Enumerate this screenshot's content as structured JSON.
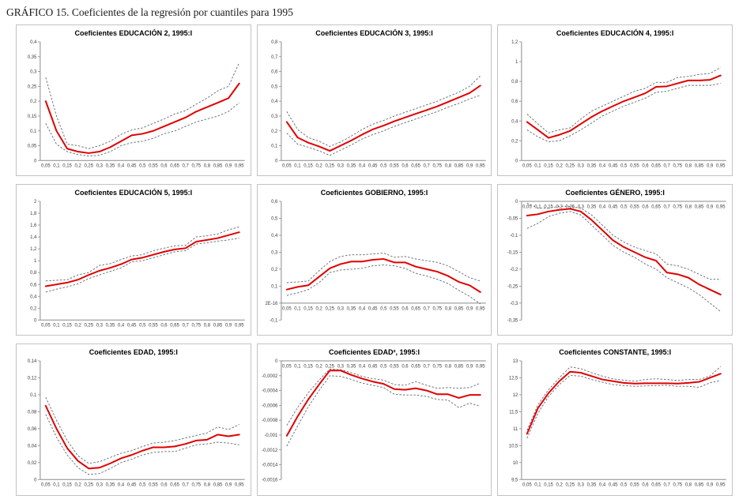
{
  "page_title": "GRÁFICO 15. Coeficientes de la regresión por cuantiles para 1995",
  "colors": {
    "estimate_line": "#e00000",
    "confidence_band": "#5b6770",
    "axis": "#8a8a8a",
    "panel_border": "#c3c3c3",
    "tick_text": "#404040",
    "title_text": "#000000"
  },
  "x_values": [
    0.05,
    0.1,
    0.15,
    0.2,
    0.25,
    0.3,
    0.35,
    0.4,
    0.45,
    0.5,
    0.55,
    0.6,
    0.65,
    0.7,
    0.75,
    0.8,
    0.85,
    0.9,
    0.95
  ],
  "x_tick_labels": [
    "0,05",
    "0,1",
    "0,15",
    "0,2",
    "0,25",
    "0,3",
    "0,35",
    "0,4",
    "0,45",
    "0,5",
    "0,55",
    "0,6",
    "0,65",
    "0,7",
    "0,75",
    "0,8",
    "0,85",
    "0,9",
    "0,95"
  ],
  "chart_data": [
    {
      "type": "line",
      "title": "Coeficientes EDUCACIÓN 2, 1995:I",
      "ylim": [
        0,
        0.4
      ],
      "x_axis_at": 0,
      "y_tick_values": [
        0.4,
        0.35,
        0.3,
        0.25,
        0.2,
        0.15,
        0.1,
        0.05,
        0
      ],
      "y_tick_labels": [
        "0,4",
        "0,35",
        "0,3",
        "0,25",
        "0,2",
        "0,15",
        "0,1",
        "0,05",
        "0"
      ],
      "series": [
        {
          "name": "coeficiente",
          "role": "estimate",
          "values": [
            0.2,
            0.1,
            0.04,
            0.03,
            0.025,
            0.03,
            0.045,
            0.065,
            0.085,
            0.09,
            0.1,
            0.115,
            0.13,
            0.145,
            0.165,
            0.18,
            0.195,
            0.21,
            0.26
          ]
        },
        {
          "name": "banda superior",
          "role": "band",
          "values": [
            0.28,
            0.15,
            0.055,
            0.05,
            0.04,
            0.05,
            0.065,
            0.088,
            0.103,
            0.11,
            0.125,
            0.14,
            0.157,
            0.168,
            0.19,
            0.21,
            0.235,
            0.25,
            0.33
          ]
        },
        {
          "name": "banda inferior",
          "role": "band",
          "values": [
            0.125,
            0.055,
            0.03,
            0.02,
            0.015,
            0.018,
            0.03,
            0.05,
            0.06,
            0.065,
            0.075,
            0.09,
            0.1,
            0.115,
            0.13,
            0.14,
            0.15,
            0.165,
            0.195
          ]
        }
      ]
    },
    {
      "type": "line",
      "title": "Coeficientes EDUCACIÓN 3, 1995:I",
      "ylim": [
        0,
        0.8
      ],
      "x_axis_at": 0,
      "y_tick_values": [
        0.8,
        0.7,
        0.6,
        0.5,
        0.4,
        0.3,
        0.2,
        0.1,
        0
      ],
      "y_tick_labels": [
        "0,8",
        "0,7",
        "0,6",
        "0,5",
        "0,4",
        "0,3",
        "0,2",
        "0,1",
        "0"
      ],
      "series": [
        {
          "name": "coeficiente",
          "role": "estimate",
          "values": [
            0.26,
            0.155,
            0.12,
            0.095,
            0.065,
            0.1,
            0.135,
            0.175,
            0.21,
            0.235,
            0.265,
            0.29,
            0.315,
            0.34,
            0.365,
            0.395,
            0.425,
            0.455,
            0.505
          ]
        },
        {
          "name": "banda superior",
          "role": "band",
          "values": [
            0.33,
            0.21,
            0.155,
            0.13,
            0.095,
            0.125,
            0.165,
            0.21,
            0.245,
            0.27,
            0.3,
            0.325,
            0.35,
            0.375,
            0.4,
            0.43,
            0.46,
            0.5,
            0.57
          ]
        },
        {
          "name": "banda inferior",
          "role": "band",
          "values": [
            0.185,
            0.11,
            0.09,
            0.065,
            0.035,
            0.07,
            0.105,
            0.145,
            0.175,
            0.2,
            0.23,
            0.255,
            0.28,
            0.305,
            0.33,
            0.36,
            0.385,
            0.415,
            0.44
          ]
        }
      ]
    },
    {
      "type": "line",
      "title": "Coeficientes EDUCACIÓN 4, 1995:I",
      "ylim": [
        0,
        1.2
      ],
      "x_axis_at": 0,
      "y_tick_values": [
        1.2,
        1,
        0.8,
        0.6,
        0.4,
        0.2,
        0
      ],
      "y_tick_labels": [
        "1,2",
        "1",
        "0,8",
        "0,6",
        "0,4",
        "0,2",
        "0"
      ],
      "series": [
        {
          "name": "coeficiente",
          "role": "estimate",
          "values": [
            0.39,
            0.31,
            0.23,
            0.26,
            0.3,
            0.37,
            0.44,
            0.5,
            0.55,
            0.6,
            0.64,
            0.68,
            0.745,
            0.75,
            0.78,
            0.81,
            0.81,
            0.815,
            0.86
          ]
        },
        {
          "name": "banda superior",
          "role": "band",
          "values": [
            0.47,
            0.37,
            0.28,
            0.31,
            0.33,
            0.42,
            0.5,
            0.55,
            0.6,
            0.65,
            0.7,
            0.73,
            0.79,
            0.79,
            0.84,
            0.85,
            0.87,
            0.88,
            0.94
          ]
        },
        {
          "name": "banda inferior",
          "role": "band",
          "values": [
            0.31,
            0.24,
            0.19,
            0.2,
            0.25,
            0.31,
            0.38,
            0.45,
            0.5,
            0.55,
            0.59,
            0.63,
            0.69,
            0.7,
            0.73,
            0.76,
            0.76,
            0.76,
            0.78
          ]
        }
      ]
    },
    {
      "type": "line",
      "title": "Coeficientes EDUCACIÓN 5, 1995:I",
      "ylim": [
        0,
        2
      ],
      "x_axis_at": 0,
      "y_tick_values": [
        2,
        1.8,
        1.6,
        1.4,
        1.2,
        1,
        0.8,
        0.6,
        0.4,
        0.2,
        0
      ],
      "y_tick_labels": [
        "2",
        "1,8",
        "1,6",
        "1,4",
        "1,2",
        "1",
        "0,8",
        "0,6",
        "0,4",
        "0,2",
        "0"
      ],
      "series": [
        {
          "name": "coeficiente",
          "role": "estimate",
          "values": [
            0.57,
            0.6,
            0.63,
            0.68,
            0.76,
            0.83,
            0.88,
            0.94,
            1.02,
            1.05,
            1.1,
            1.15,
            1.19,
            1.21,
            1.32,
            1.35,
            1.38,
            1.43,
            1.48
          ]
        },
        {
          "name": "banda superior",
          "role": "band",
          "values": [
            0.66,
            0.67,
            0.68,
            0.76,
            0.8,
            0.92,
            0.95,
            1.02,
            1.08,
            1.1,
            1.17,
            1.21,
            1.25,
            1.26,
            1.4,
            1.42,
            1.45,
            1.52,
            1.57
          ]
        },
        {
          "name": "banda inferior",
          "role": "band",
          "values": [
            0.47,
            0.52,
            0.56,
            0.61,
            0.7,
            0.76,
            0.82,
            0.88,
            0.98,
            1.0,
            1.05,
            1.1,
            1.15,
            1.17,
            1.28,
            1.3,
            1.33,
            1.35,
            1.38
          ]
        }
      ]
    },
    {
      "type": "line",
      "title": "Coeficientes GOBIERNO, 1995:I",
      "ylim": [
        -0.1,
        0.6
      ],
      "x_axis_at": 0,
      "y_tick_values": [
        0.6,
        0.5,
        0.4,
        0.3,
        0.2,
        0.1,
        0,
        -0.1
      ],
      "y_tick_labels": [
        "0,6",
        "0,5",
        "0,4",
        "0,3",
        "0,2",
        "0,1",
        "2E-16",
        "-0,1"
      ],
      "series": [
        {
          "name": "coeficiente",
          "role": "estimate",
          "values": [
            0.08,
            0.095,
            0.105,
            0.155,
            0.205,
            0.23,
            0.245,
            0.245,
            0.255,
            0.26,
            0.24,
            0.24,
            0.215,
            0.2,
            0.185,
            0.16,
            0.125,
            0.105,
            0.065
          ]
        },
        {
          "name": "banda superior",
          "role": "band",
          "values": [
            0.12,
            0.125,
            0.13,
            0.19,
            0.245,
            0.275,
            0.285,
            0.285,
            0.29,
            0.295,
            0.27,
            0.275,
            0.26,
            0.25,
            0.24,
            0.22,
            0.185,
            0.15,
            0.13
          ]
        },
        {
          "name": "banda inferior",
          "role": "band",
          "values": [
            0.045,
            0.06,
            0.08,
            0.12,
            0.18,
            0.195,
            0.2,
            0.205,
            0.22,
            0.225,
            0.22,
            0.205,
            0.175,
            0.16,
            0.14,
            0.115,
            0.075,
            0.04,
            -0.005
          ]
        }
      ]
    },
    {
      "type": "line",
      "title": "Coeficientes GÉNERO, 1995:I",
      "ylim": [
        -0.35,
        0
      ],
      "x_axis_at": 0,
      "y_tick_values": [
        0,
        -0.05,
        -0.1,
        -0.15,
        -0.2,
        -0.25,
        -0.3,
        -0.35
      ],
      "y_tick_labels": [
        "0",
        "-0,05",
        "-0,1",
        "-0,15",
        "-0,2",
        "-0,25",
        "-0,3",
        "-0,35"
      ],
      "series": [
        {
          "name": "coeficiente",
          "role": "estimate",
          "values": [
            -0.042,
            -0.038,
            -0.03,
            -0.025,
            -0.022,
            -0.03,
            -0.055,
            -0.085,
            -0.115,
            -0.135,
            -0.15,
            -0.165,
            -0.175,
            -0.21,
            -0.215,
            -0.225,
            -0.245,
            -0.26,
            -0.275
          ]
        },
        {
          "name": "banda superior",
          "role": "band",
          "values": [
            -0.005,
            -0.02,
            -0.02,
            -0.015,
            -0.015,
            -0.02,
            -0.04,
            -0.07,
            -0.1,
            -0.12,
            -0.135,
            -0.145,
            -0.155,
            -0.185,
            -0.19,
            -0.2,
            -0.215,
            -0.23,
            -0.23
          ]
        },
        {
          "name": "banda inferior",
          "role": "band",
          "values": [
            -0.08,
            -0.065,
            -0.045,
            -0.035,
            -0.03,
            -0.04,
            -0.07,
            -0.1,
            -0.13,
            -0.15,
            -0.165,
            -0.185,
            -0.2,
            -0.225,
            -0.24,
            -0.255,
            -0.275,
            -0.3,
            -0.325
          ]
        }
      ]
    },
    {
      "type": "line",
      "title": "Coeficientes EDAD, 1995:I",
      "ylim": [
        0,
        0.14
      ],
      "x_axis_at": 0,
      "y_tick_values": [
        0.14,
        0.12,
        0.1,
        0.08,
        0.06,
        0.04,
        0.02,
        0
      ],
      "y_tick_labels": [
        "0,14",
        "0,12",
        "0,1",
        "0,08",
        "0,06",
        "0,04",
        "0,02",
        "0"
      ],
      "series": [
        {
          "name": "coeficiente",
          "role": "estimate",
          "values": [
            0.087,
            0.06,
            0.037,
            0.022,
            0.013,
            0.014,
            0.019,
            0.025,
            0.029,
            0.034,
            0.038,
            0.038,
            0.039,
            0.042,
            0.046,
            0.047,
            0.053,
            0.051,
            0.053
          ]
        },
        {
          "name": "banda superior",
          "role": "band",
          "values": [
            0.097,
            0.07,
            0.046,
            0.028,
            0.019,
            0.021,
            0.026,
            0.031,
            0.034,
            0.039,
            0.043,
            0.044,
            0.046,
            0.049,
            0.052,
            0.055,
            0.062,
            0.059,
            0.065
          ]
        },
        {
          "name": "banda inferior",
          "role": "band",
          "values": [
            0.077,
            0.05,
            0.029,
            0.014,
            0.006,
            0.007,
            0.013,
            0.02,
            0.024,
            0.029,
            0.032,
            0.033,
            0.033,
            0.037,
            0.041,
            0.042,
            0.044,
            0.043,
            0.041
          ]
        }
      ]
    },
    {
      "type": "line",
      "title": "Coeficientes EDAD², 1995:I",
      "ylim": [
        -0.0016,
        0
      ],
      "x_axis_at": 0,
      "y_tick_values": [
        0,
        -0.0002,
        -0.0004,
        -0.0006,
        -0.0008,
        -0.001,
        -0.0012,
        -0.0014,
        -0.0016
      ],
      "y_tick_labels": [
        "0",
        "-0,0002",
        "-0,0004",
        "-0,0006",
        "-0,0008",
        "-0,001",
        "-0,0012",
        "-0,0014",
        "-0,0016"
      ],
      "series": [
        {
          "name": "coeficiente",
          "role": "estimate",
          "values": [
            -0.00101,
            -0.00075,
            -0.00052,
            -0.00032,
            -0.00013,
            -0.00013,
            -0.00019,
            -0.00024,
            -0.00028,
            -0.00031,
            -0.00038,
            -0.00039,
            -0.00037,
            -0.0004,
            -0.00045,
            -0.00045,
            -0.0005,
            -0.00046,
            -0.00046
          ]
        },
        {
          "name": "banda superior",
          "role": "band",
          "values": [
            -0.00087,
            -0.00063,
            -0.00043,
            -0.00026,
            -0.00011,
            -0.00012,
            -0.00016,
            -0.00021,
            -0.00024,
            -0.00026,
            -0.00032,
            -0.00033,
            -0.00028,
            -0.00033,
            -0.00037,
            -0.00036,
            -0.00037,
            -0.00036,
            -0.0003
          ]
        },
        {
          "name": "banda inferior",
          "role": "band",
          "values": [
            -0.00115,
            -0.00088,
            -0.00062,
            -0.0004,
            -0.0002,
            -0.00021,
            -0.00025,
            -0.0003,
            -0.00033,
            -0.00036,
            -0.00045,
            -0.00046,
            -0.00046,
            -0.00048,
            -0.00052,
            -0.00053,
            -0.00063,
            -0.00057,
            -0.00061
          ]
        }
      ]
    },
    {
      "type": "line",
      "title": "Coeficientes CONSTANTE, 1995:I",
      "ylim": [
        9.5,
        13
      ],
      "x_axis_at": 9.5,
      "y_tick_values": [
        13,
        12.5,
        12,
        11.5,
        11,
        10.5,
        10,
        9.5
      ],
      "y_tick_labels": [
        "13",
        "12,5",
        "12",
        "11,5",
        "11",
        "10,5",
        "10",
        "9,5"
      ],
      "series": [
        {
          "name": "coeficiente",
          "role": "estimate",
          "values": [
            10.85,
            11.6,
            12.05,
            12.4,
            12.68,
            12.65,
            12.55,
            12.45,
            12.4,
            12.35,
            12.33,
            12.34,
            12.34,
            12.34,
            12.33,
            12.35,
            12.38,
            12.5,
            12.62
          ]
        },
        {
          "name": "banda superior",
          "role": "band",
          "values": [
            10.95,
            11.7,
            12.15,
            12.5,
            12.82,
            12.77,
            12.65,
            12.55,
            12.47,
            12.43,
            12.4,
            12.45,
            12.47,
            12.45,
            12.42,
            12.45,
            12.45,
            12.55,
            12.83
          ]
        },
        {
          "name": "banda inferior",
          "role": "band",
          "values": [
            10.72,
            11.45,
            11.95,
            12.3,
            12.57,
            12.55,
            12.45,
            12.37,
            12.3,
            12.27,
            12.25,
            12.26,
            12.27,
            12.28,
            12.25,
            12.25,
            12.22,
            12.35,
            12.42
          ]
        }
      ]
    }
  ]
}
